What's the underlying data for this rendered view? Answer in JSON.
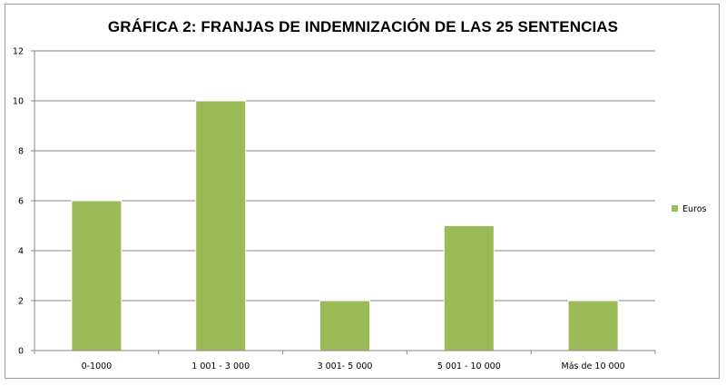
{
  "chart_data": {
    "type": "bar",
    "title": "GRÁFICA 2: FRANJAS DE INDEMNIZACIÓN DE LAS 25 SENTENCIAS",
    "xlabel": "",
    "ylabel": "",
    "categories": [
      "0-1000",
      "1 001 - 3 000",
      "3 001- 5 000",
      "5 001 - 10 000",
      "Más de 10 000"
    ],
    "series": [
      {
        "name": "Euros",
        "values": [
          6,
          10,
          2,
          5,
          2
        ]
      }
    ],
    "ylim": [
      0,
      12
    ],
    "yticks": [
      "0",
      "2",
      "4",
      "6",
      "8",
      "10",
      "12"
    ],
    "grid": true,
    "legend": "right",
    "colors": {
      "bar": "#9bbb59",
      "bar_edge": "#ffffff",
      "grid": "#868686",
      "axis": "#868686"
    }
  }
}
